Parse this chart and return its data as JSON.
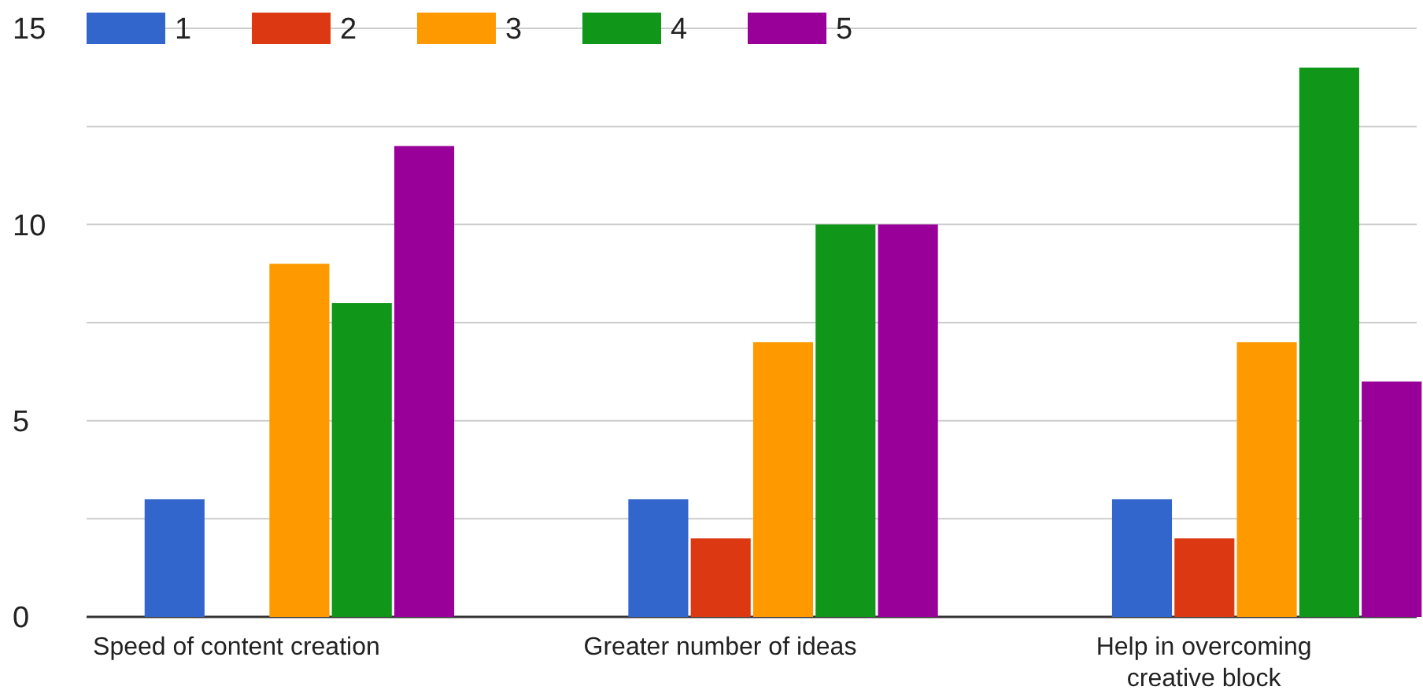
{
  "chart_data": {
    "type": "bar",
    "categories": [
      "Speed of content creation",
      "Greater number of ideas",
      "Help in overcoming creative block"
    ],
    "series": [
      {
        "name": "1",
        "color": "#3366cc",
        "values": [
          3,
          3,
          3
        ]
      },
      {
        "name": "2",
        "color": "#dc3912",
        "values": [
          0,
          2,
          2
        ]
      },
      {
        "name": "3",
        "color": "#ff9900",
        "values": [
          9,
          7,
          7
        ]
      },
      {
        "name": "4",
        "color": "#109618",
        "values": [
          8,
          10,
          14
        ]
      },
      {
        "name": "5",
        "color": "#990099",
        "values": [
          12,
          10,
          6
        ]
      }
    ],
    "ylim": [
      0,
      15
    ],
    "yticks": [
      0,
      {
        "value": 2.5,
        "label": null
      },
      5,
      {
        "value": 7.5,
        "label": null
      },
      10,
      {
        "value": 12.5,
        "label": null
      },
      15
    ],
    "grid": "y",
    "legend": "top"
  }
}
